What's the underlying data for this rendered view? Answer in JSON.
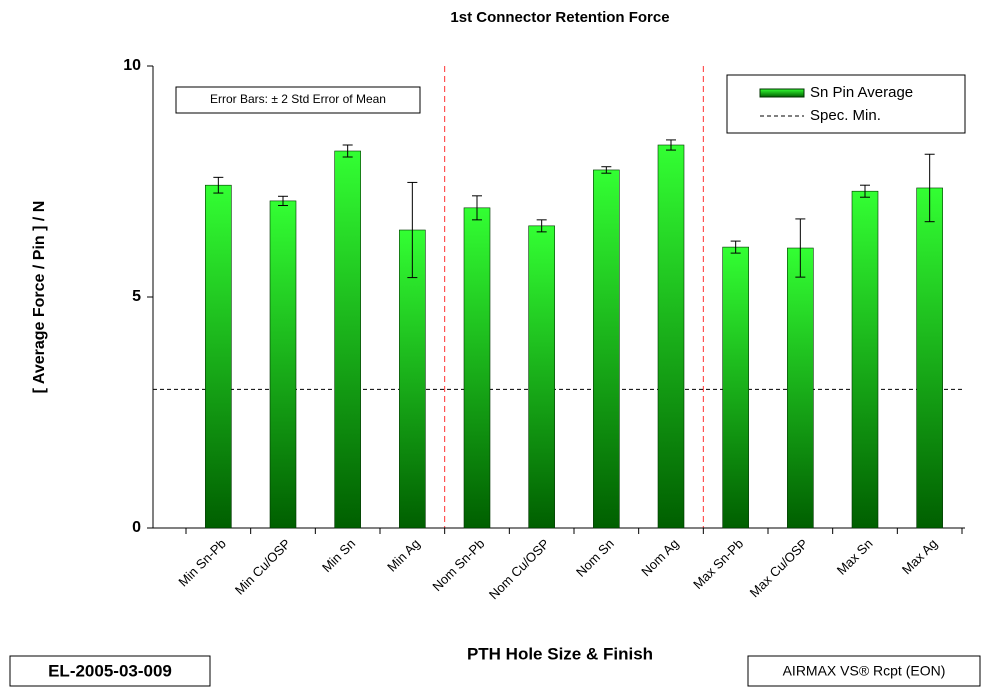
{
  "chart_data": {
    "type": "bar",
    "title": "1st Connector Retention Force",
    "x_label": "PTH Hole Size & Finish",
    "y_label": "[ Average Force / Pin ] / N",
    "annotations": [
      "Error Bars: ± 2 Std Error of Mean",
      "EL-2005-03-009",
      "AIRMAX VS® Rcpt (EON)"
    ],
    "categories": [
      "Min Sn-Pb",
      "Min Cu/OSP",
      "Min Sn",
      "Min Ag",
      "Nom Sn-Pb",
      "Nom Cu/OSP",
      "Nom Sn",
      "Nom Ag",
      "Max Sn-Pb",
      "Max Cu/OSP",
      "Max Sn",
      "Max Ag"
    ],
    "series": [
      {
        "name": "Sn Pin Average",
        "color": "#22ee22",
        "values": [
          7.42,
          7.08,
          8.16,
          6.45,
          6.93,
          6.54,
          7.75,
          8.29,
          6.08,
          6.06,
          7.29,
          7.36
        ],
        "errors": [
          0.17,
          0.1,
          0.13,
          1.03,
          0.26,
          0.13,
          0.07,
          0.11,
          0.13,
          0.63,
          0.13,
          0.73
        ]
      }
    ],
    "reference_line": {
      "name": "Spec. Min.",
      "value": 3
    },
    "ylim": [
      0,
      10
    ],
    "yticks": [
      0,
      5,
      10
    ],
    "grid": false,
    "legend": "top-right"
  }
}
